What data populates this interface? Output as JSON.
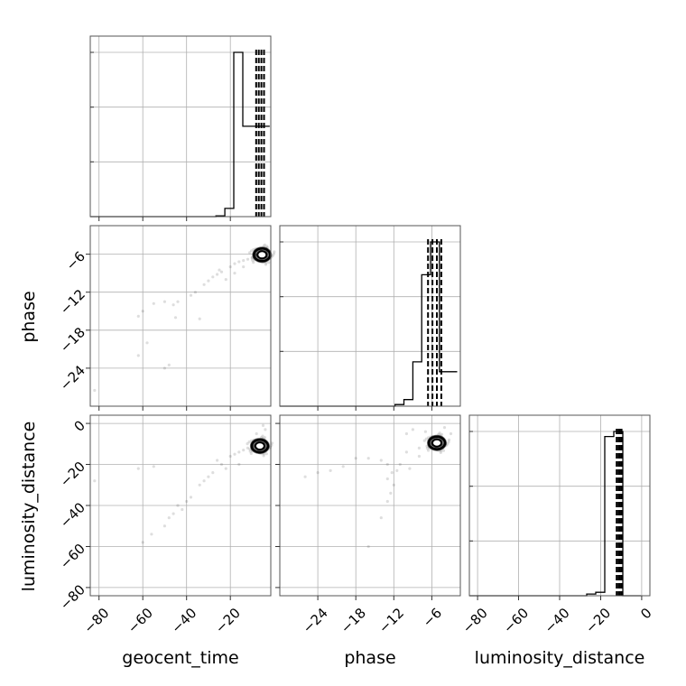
{
  "chart_data": {
    "type": "scatter",
    "plot_style": "corner plot",
    "grid": true,
    "colors": {
      "samples": "#000000",
      "grid": "#b0b0b0",
      "frame": "#555555"
    },
    "parameters": [
      {
        "key": "geocent_time",
        "label": "geocent_time",
        "range": [
          -84,
          -1.5
        ],
        "ticks": [
          -80,
          -60,
          -40,
          -20
        ],
        "tick_labels": [
          "−80",
          "−60",
          "−40",
          "−20"
        ]
      },
      {
        "key": "phase",
        "label": "phase",
        "range": [
          -30,
          -1.5
        ],
        "ticks": [
          -24,
          -18,
          -12,
          -6
        ],
        "tick_labels": [
          "−24",
          "−18",
          "−12",
          "−6"
        ]
      },
      {
        "key": "luminosity_distance",
        "label": "luminosity_distance",
        "range": [
          -84,
          4
        ],
        "ticks": [
          -80,
          -60,
          -40,
          -20,
          0
        ],
        "tick_labels": [
          "−80",
          "−60",
          "−40",
          "−20",
          "0"
        ]
      }
    ],
    "histograms": [
      {
        "param": "geocent_time",
        "edges": [
          -84,
          -79.9,
          -75.8,
          -71.7,
          -67.6,
          -63.5,
          -59.4,
          -55.3,
          -51.2,
          -47.1,
          -43.0,
          -38.9,
          -34.8,
          -30.7,
          -26.6,
          -22.5,
          -18.4,
          -14.3,
          -10.2,
          -6.1,
          -2.0
        ],
        "counts": [
          0,
          0,
          0,
          0,
          0,
          0,
          0,
          0,
          0,
          0,
          0,
          0,
          0,
          0,
          0.005,
          0.05,
          1.0,
          0.55,
          0.55,
          0.55
        ],
        "quantiles": [
          -8.2,
          -7.0,
          -5.8,
          -4.6
        ]
      },
      {
        "param": "phase",
        "edges": [
          -30,
          -28.6,
          -27.2,
          -25.8,
          -24.4,
          -23.0,
          -21.6,
          -20.2,
          -18.8,
          -17.4,
          -16.0,
          -14.6,
          -13.2,
          -11.8,
          -10.4,
          -9.0,
          -7.6,
          -6.2,
          -4.8,
          -3.4,
          -2.0
        ],
        "counts": [
          0,
          0,
          0,
          0,
          0,
          0,
          0,
          0,
          0,
          0,
          0,
          0,
          0,
          0.01,
          0.04,
          0.27,
          0.8,
          1.0,
          0.21,
          0.21
        ],
        "quantiles": [
          -6.6,
          -5.9,
          -5.2,
          -4.5
        ]
      },
      {
        "param": "luminosity_distance",
        "edges": [
          -84,
          -79.6,
          -75.2,
          -70.8,
          -66.4,
          -62.0,
          -57.6,
          -53.2,
          -48.8,
          -44.4,
          -40.0,
          -35.6,
          -31.2,
          -26.8,
          -22.4,
          -18.0,
          -13.6,
          -9.2,
          -4.8,
          -0.4
        ],
        "counts": [
          0,
          0,
          0,
          0,
          0,
          0,
          0,
          0,
          0,
          0,
          0,
          0,
          0,
          0.01,
          0.02,
          0.94,
          0.97,
          0.0,
          0.0
        ],
        "quantiles": [
          -12.2,
          -11.3,
          -10.6,
          -9.8
        ]
      }
    ],
    "scatter_panels": [
      {
        "x": "geocent_time",
        "y": "phase",
        "contour_center": [
          -5.5,
          -6.1
        ],
        "sample_points": [
          [
            -20,
            -8
          ],
          [
            -18,
            -7.5
          ],
          [
            -16,
            -7.2
          ],
          [
            -14,
            -7.0
          ],
          [
            -12,
            -6.8
          ],
          [
            -10,
            -6.5
          ],
          [
            -8,
            -6.2
          ],
          [
            -24,
            -8.8
          ],
          [
            -26,
            -9.2
          ],
          [
            -28,
            -9.6
          ],
          [
            -30,
            -10.2
          ],
          [
            -32,
            -10.8
          ],
          [
            -36,
            -12.0
          ],
          [
            -38,
            -12.5
          ],
          [
            -44,
            -13.5
          ],
          [
            -46,
            -14.0
          ],
          [
            -50,
            -13.5
          ],
          [
            -55,
            -13.8
          ],
          [
            -60,
            -15.0
          ],
          [
            -62,
            -15.8
          ],
          [
            -45,
            -16.0
          ],
          [
            -34,
            -16.2
          ],
          [
            -58,
            -20.0
          ],
          [
            -62,
            -22.0
          ],
          [
            -50,
            -24.0
          ],
          [
            -48,
            -23.5
          ],
          [
            -82,
            -27.5
          ],
          [
            -22,
            -10.0
          ],
          [
            -25,
            -8.5
          ],
          [
            -14,
            -8.0
          ],
          [
            -6,
            -5.5
          ],
          [
            -4,
            -5.2
          ],
          [
            -3,
            -5.0
          ],
          [
            -18,
            -9.0
          ]
        ]
      },
      {
        "x": "geocent_time",
        "y": "luminosity_distance",
        "contour_center": [
          -6.5,
          -11.0
        ],
        "sample_points": [
          [
            -20,
            -16
          ],
          [
            -18,
            -15
          ],
          [
            -16,
            -14
          ],
          [
            -14,
            -13
          ],
          [
            -12,
            -12
          ],
          [
            -10,
            -11
          ],
          [
            -24,
            -20
          ],
          [
            -28,
            -24
          ],
          [
            -30,
            -26
          ],
          [
            -34,
            -30
          ],
          [
            -38,
            -36
          ],
          [
            -40,
            -38
          ],
          [
            -44,
            -40
          ],
          [
            -46,
            -44
          ],
          [
            -48,
            -46
          ],
          [
            -50,
            -50
          ],
          [
            -56,
            -54
          ],
          [
            -60,
            -58
          ],
          [
            -62,
            -22
          ],
          [
            -55,
            -21
          ],
          [
            -82,
            -28
          ],
          [
            -22,
            -22
          ],
          [
            -26,
            -18
          ],
          [
            -32,
            -28
          ],
          [
            -42,
            -42
          ],
          [
            -8,
            -5
          ],
          [
            -4,
            -3
          ],
          [
            -5,
            -1
          ],
          [
            -16,
            -20
          ]
        ]
      },
      {
        "x": "phase",
        "y": "luminosity_distance",
        "contour_center": [
          -5.2,
          -9.5
        ],
        "sample_points": [
          [
            -8,
            -12
          ],
          [
            -10,
            -14
          ],
          [
            -11,
            -20
          ],
          [
            -11.5,
            -23
          ],
          [
            -12.3,
            -24
          ],
          [
            -13,
            -20
          ],
          [
            -14,
            -18
          ],
          [
            -16,
            -17
          ],
          [
            -18,
            -17
          ],
          [
            -20,
            -21
          ],
          [
            -22,
            -23
          ],
          [
            -24,
            -24
          ],
          [
            -26,
            -26
          ],
          [
            -12,
            -30
          ],
          [
            -12.5,
            -34
          ],
          [
            -13,
            -38
          ],
          [
            -14,
            -46
          ],
          [
            -16,
            -60
          ],
          [
            -13,
            -27
          ],
          [
            -10,
            -5
          ],
          [
            -9,
            -3
          ],
          [
            -7,
            -4
          ],
          [
            -4,
            -2
          ],
          [
            -3,
            -5
          ],
          [
            -8,
            -16
          ],
          [
            -9.5,
            -22
          ]
        ]
      }
    ]
  }
}
